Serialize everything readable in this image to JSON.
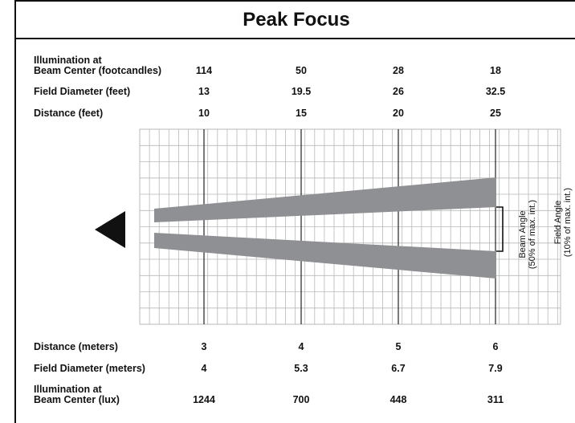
{
  "title": "Peak Focus",
  "rows_top": [
    {
      "label_line1": "Illumination at",
      "label_line2": "Beam Center (footcandles)",
      "values": [
        "114",
        "50",
        "28",
        "18"
      ]
    },
    {
      "label_line1": "",
      "label_line2": "Field Diameter (feet)",
      "values": [
        "13",
        "19.5",
        "26",
        "32.5"
      ]
    },
    {
      "label_line1": "",
      "label_line2": "Distance (feet)",
      "values": [
        "10",
        "15",
        "20",
        "25"
      ]
    }
  ],
  "rows_bottom": [
    {
      "label_line1": "",
      "label_line2": "Distance (meters)",
      "values": [
        "3",
        "4",
        "5",
        "6"
      ]
    },
    {
      "label_line1": "",
      "label_line2": "Field Diameter (meters)",
      "values": [
        "4",
        "5.3",
        "6.7",
        "7.9"
      ]
    },
    {
      "label_line1": "Illumination at",
      "label_line2": "Beam Center (lux)",
      "values": [
        "1244",
        "700",
        "448",
        "311"
      ]
    }
  ],
  "beam_angle_label": [
    "Beam Angle",
    "(50% of max. int.)"
  ],
  "field_angle_label": [
    "Field Angle",
    "(10% of max. int.)"
  ],
  "chart_data": {
    "type": "table",
    "title": "Peak Focus",
    "distance_feet": [
      10,
      15,
      20,
      25
    ],
    "field_diameter_feet": [
      13,
      19.5,
      26,
      32.5
    ],
    "illumination_footcandles": [
      114,
      50,
      28,
      18
    ],
    "distance_meters": [
      3,
      4,
      5,
      6
    ],
    "field_diameter_meters": [
      4,
      5.3,
      6.7,
      7.9
    ],
    "illumination_lux": [
      1244,
      700,
      448,
      311
    ],
    "colors": {
      "beam": "#8f9093",
      "grid": "#b8b8b8",
      "major_grid": "#222222"
    }
  }
}
